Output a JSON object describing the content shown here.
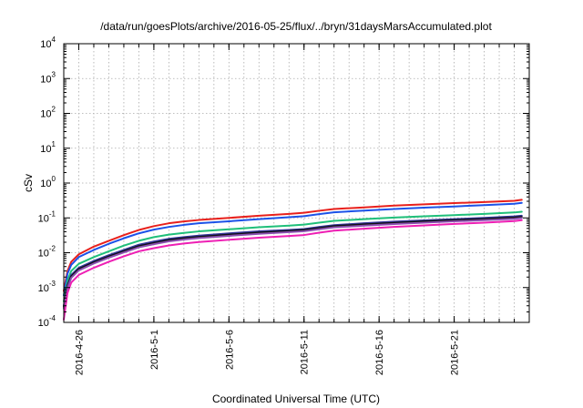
{
  "chart_data": {
    "type": "line",
    "title": "/data/run/goesPlots/archive/2016-05-25/flux/../bryn/31daysMarsAccumulated.plot",
    "xlabel": "Coordinated Universal Time (UTC)",
    "ylabel": "cSv",
    "y_scale": "log",
    "ylim": [
      0.0001,
      10000
    ],
    "xlim": [
      "2016-04-25",
      "2016-05-26"
    ],
    "grid": true,
    "legend": "none",
    "y_ticks": [
      {
        "value": 0.0001,
        "base": "10",
        "exp": "-4"
      },
      {
        "value": 0.001,
        "base": "10",
        "exp": "-3"
      },
      {
        "value": 0.01,
        "base": "10",
        "exp": "-2"
      },
      {
        "value": 0.1,
        "base": "10",
        "exp": "-1"
      },
      {
        "value": 1,
        "base": "10",
        "exp": "0"
      },
      {
        "value": 10,
        "base": "10",
        "exp": "1"
      },
      {
        "value": 100,
        "base": "10",
        "exp": "2"
      },
      {
        "value": 1000,
        "base": "10",
        "exp": "3"
      },
      {
        "value": 10000,
        "base": "10",
        "exp": "4"
      }
    ],
    "x_ticks": [
      {
        "value": "2016-04-26",
        "label": "2016-4-26"
      },
      {
        "value": "2016-05-01",
        "label": "2016-5-1"
      },
      {
        "value": "2016-05-06",
        "label": "2016-5-6"
      },
      {
        "value": "2016-05-11",
        "label": "2016-5-11"
      },
      {
        "value": "2016-05-16",
        "label": "2016-5-16"
      },
      {
        "value": "2016-05-21",
        "label": "2016-5-21"
      }
    ],
    "x_minor_grid": [
      "2016-04-26",
      "2016-04-27",
      "2016-04-28",
      "2016-04-29",
      "2016-04-30",
      "2016-05-01",
      "2016-05-02",
      "2016-05-03",
      "2016-05-04",
      "2016-05-05",
      "2016-05-06",
      "2016-05-07",
      "2016-05-08",
      "2016-05-09",
      "2016-05-10",
      "2016-05-11",
      "2016-05-12",
      "2016-05-13",
      "2016-05-14",
      "2016-05-15",
      "2016-05-16",
      "2016-05-17",
      "2016-05-18",
      "2016-05-19",
      "2016-05-20",
      "2016-05-21",
      "2016-05-22",
      "2016-05-23",
      "2016-05-24",
      "2016-05-25"
    ],
    "series": [
      {
        "color": "#e8201c",
        "points": [
          [
            "2016-04-25T00:00",
            0.0008
          ],
          [
            "2016-04-25T06:00",
            0.003
          ],
          [
            "2016-04-25T12:00",
            0.0055
          ],
          [
            "2016-04-26T00:00",
            0.009
          ],
          [
            "2016-04-27T00:00",
            0.015
          ],
          [
            "2016-04-28T00:00",
            0.022
          ],
          [
            "2016-04-29T00:00",
            0.032
          ],
          [
            "2016-04-30T00:00",
            0.045
          ],
          [
            "2016-05-01T00:00",
            0.058
          ],
          [
            "2016-05-02T00:00",
            0.07
          ],
          [
            "2016-05-03T00:00",
            0.079
          ],
          [
            "2016-05-04T00:00",
            0.087
          ],
          [
            "2016-05-06T00:00",
            0.1
          ],
          [
            "2016-05-08T00:00",
            0.115
          ],
          [
            "2016-05-10T00:00",
            0.13
          ],
          [
            "2016-05-11T00:00",
            0.14
          ],
          [
            "2016-05-12T00:00",
            0.16
          ],
          [
            "2016-05-13T00:00",
            0.18
          ],
          [
            "2016-05-15T00:00",
            0.2
          ],
          [
            "2016-05-17T00:00",
            0.225
          ],
          [
            "2016-05-19T00:00",
            0.245
          ],
          [
            "2016-05-21T00:00",
            0.265
          ],
          [
            "2016-05-23T00:00",
            0.285
          ],
          [
            "2016-05-25T00:00",
            0.31
          ],
          [
            "2016-05-25T12:00",
            0.33
          ]
        ]
      },
      {
        "color": "#1c52e8",
        "points": [
          [
            "2016-04-25T00:00",
            0.0006
          ],
          [
            "2016-04-25T06:00",
            0.0025
          ],
          [
            "2016-04-25T12:00",
            0.0045
          ],
          [
            "2016-04-26T00:00",
            0.0075
          ],
          [
            "2016-04-27T00:00",
            0.012
          ],
          [
            "2016-04-28T00:00",
            0.018
          ],
          [
            "2016-04-29T00:00",
            0.026
          ],
          [
            "2016-04-30T00:00",
            0.036
          ],
          [
            "2016-05-01T00:00",
            0.046
          ],
          [
            "2016-05-02T00:00",
            0.055
          ],
          [
            "2016-05-03T00:00",
            0.063
          ],
          [
            "2016-05-04T00:00",
            0.07
          ],
          [
            "2016-05-06T00:00",
            0.08
          ],
          [
            "2016-05-08T00:00",
            0.092
          ],
          [
            "2016-05-10T00:00",
            0.105
          ],
          [
            "2016-05-11T00:00",
            0.112
          ],
          [
            "2016-05-12T00:00",
            0.128
          ],
          [
            "2016-05-13T00:00",
            0.145
          ],
          [
            "2016-05-15T00:00",
            0.162
          ],
          [
            "2016-05-17T00:00",
            0.18
          ],
          [
            "2016-05-19T00:00",
            0.197
          ],
          [
            "2016-05-21T00:00",
            0.213
          ],
          [
            "2016-05-23T00:00",
            0.232
          ],
          [
            "2016-05-25T00:00",
            0.255
          ],
          [
            "2016-05-25T12:00",
            0.27
          ]
        ]
      },
      {
        "color": "#1fbf7a",
        "points": [
          [
            "2016-04-25T00:00",
            0.0004
          ],
          [
            "2016-04-25T06:00",
            0.0016
          ],
          [
            "2016-04-25T12:00",
            0.003
          ],
          [
            "2016-04-26T00:00",
            0.0048
          ],
          [
            "2016-04-27T00:00",
            0.0075
          ],
          [
            "2016-04-28T00:00",
            0.011
          ],
          [
            "2016-04-29T00:00",
            0.016
          ],
          [
            "2016-04-30T00:00",
            0.022
          ],
          [
            "2016-05-01T00:00",
            0.028
          ],
          [
            "2016-05-02T00:00",
            0.033
          ],
          [
            "2016-05-03T00:00",
            0.037
          ],
          [
            "2016-05-04T00:00",
            0.041
          ],
          [
            "2016-05-06T00:00",
            0.047
          ],
          [
            "2016-05-08T00:00",
            0.054
          ],
          [
            "2016-05-10T00:00",
            0.06
          ],
          [
            "2016-05-11T00:00",
            0.064
          ],
          [
            "2016-05-12T00:00",
            0.073
          ],
          [
            "2016-05-13T00:00",
            0.082
          ],
          [
            "2016-05-15T00:00",
            0.092
          ],
          [
            "2016-05-17T00:00",
            0.102
          ],
          [
            "2016-05-19T00:00",
            0.111
          ],
          [
            "2016-05-21T00:00",
            0.12
          ],
          [
            "2016-05-23T00:00",
            0.13
          ],
          [
            "2016-05-25T00:00",
            0.143
          ],
          [
            "2016-05-25T12:00",
            0.15
          ]
        ]
      },
      {
        "color": "#333399",
        "points": [
          [
            "2016-04-25T00:00",
            0.0003
          ],
          [
            "2016-04-25T06:00",
            0.0012
          ],
          [
            "2016-04-25T12:00",
            0.0023
          ],
          [
            "2016-04-26T00:00",
            0.0037
          ],
          [
            "2016-04-27T00:00",
            0.0058
          ],
          [
            "2016-04-28T00:00",
            0.0085
          ],
          [
            "2016-04-29T00:00",
            0.012
          ],
          [
            "2016-04-30T00:00",
            0.017
          ],
          [
            "2016-05-01T00:00",
            0.021
          ],
          [
            "2016-05-02T00:00",
            0.025
          ],
          [
            "2016-05-03T00:00",
            0.028
          ],
          [
            "2016-05-04T00:00",
            0.031
          ],
          [
            "2016-05-06T00:00",
            0.036
          ],
          [
            "2016-05-08T00:00",
            0.041
          ],
          [
            "2016-05-10T00:00",
            0.045
          ],
          [
            "2016-05-11T00:00",
            0.048
          ],
          [
            "2016-05-12T00:00",
            0.055
          ],
          [
            "2016-05-13T00:00",
            0.062
          ],
          [
            "2016-05-15T00:00",
            0.07
          ],
          [
            "2016-05-17T00:00",
            0.078
          ],
          [
            "2016-05-19T00:00",
            0.085
          ],
          [
            "2016-05-21T00:00",
            0.092
          ],
          [
            "2016-05-23T00:00",
            0.1
          ],
          [
            "2016-05-25T00:00",
            0.11
          ],
          [
            "2016-05-25T12:00",
            0.115
          ]
        ]
      },
      {
        "color": "#111111",
        "points": [
          [
            "2016-04-25T00:00",
            0.00028
          ],
          [
            "2016-04-25T06:00",
            0.0011
          ],
          [
            "2016-04-25T12:00",
            0.0021
          ],
          [
            "2016-04-26T00:00",
            0.0034
          ],
          [
            "2016-04-27T00:00",
            0.0053
          ],
          [
            "2016-04-28T00:00",
            0.0078
          ],
          [
            "2016-04-29T00:00",
            0.011
          ],
          [
            "2016-04-30T00:00",
            0.0155
          ],
          [
            "2016-05-01T00:00",
            0.019
          ],
          [
            "2016-05-02T00:00",
            0.023
          ],
          [
            "2016-05-03T00:00",
            0.026
          ],
          [
            "2016-05-04T00:00",
            0.0285
          ],
          [
            "2016-05-06T00:00",
            0.033
          ],
          [
            "2016-05-08T00:00",
            0.038
          ],
          [
            "2016-05-10T00:00",
            0.042
          ],
          [
            "2016-05-11T00:00",
            0.045
          ],
          [
            "2016-05-12T00:00",
            0.051
          ],
          [
            "2016-05-13T00:00",
            0.058
          ],
          [
            "2016-05-15T00:00",
            0.065
          ],
          [
            "2016-05-17T00:00",
            0.072
          ],
          [
            "2016-05-19T00:00",
            0.079
          ],
          [
            "2016-05-21T00:00",
            0.086
          ],
          [
            "2016-05-23T00:00",
            0.093
          ],
          [
            "2016-05-25T00:00",
            0.102
          ],
          [
            "2016-05-25T12:00",
            0.107
          ]
        ]
      },
      {
        "color": "#8a4fb0",
        "points": [
          [
            "2016-04-25T00:00",
            0.00025
          ],
          [
            "2016-04-25T06:00",
            0.001
          ],
          [
            "2016-04-25T12:00",
            0.0019
          ],
          [
            "2016-04-26T00:00",
            0.0031
          ],
          [
            "2016-04-27T00:00",
            0.0049
          ],
          [
            "2016-04-28T00:00",
            0.0072
          ],
          [
            "2016-04-29T00:00",
            0.0102
          ],
          [
            "2016-04-30T00:00",
            0.0143
          ],
          [
            "2016-05-01T00:00",
            0.0176
          ],
          [
            "2016-05-02T00:00",
            0.0212
          ],
          [
            "2016-05-03T00:00",
            0.024
          ],
          [
            "2016-05-04T00:00",
            0.0264
          ],
          [
            "2016-05-06T00:00",
            0.0305
          ],
          [
            "2016-05-08T00:00",
            0.035
          ],
          [
            "2016-05-10T00:00",
            0.039
          ],
          [
            "2016-05-11T00:00",
            0.0415
          ],
          [
            "2016-05-12T00:00",
            0.047
          ],
          [
            "2016-05-13T00:00",
            0.0535
          ],
          [
            "2016-05-15T00:00",
            0.06
          ],
          [
            "2016-05-17T00:00",
            0.0665
          ],
          [
            "2016-05-19T00:00",
            0.073
          ],
          [
            "2016-05-21T00:00",
            0.0795
          ],
          [
            "2016-05-23T00:00",
            0.086
          ],
          [
            "2016-05-25T00:00",
            0.094
          ],
          [
            "2016-05-25T12:00",
            0.099
          ]
        ]
      },
      {
        "color": "#ee1fb4",
        "points": [
          [
            "2016-04-25T00:00",
            0.00012
          ],
          [
            "2016-04-25T06:00",
            0.0007
          ],
          [
            "2016-04-25T12:00",
            0.0014
          ],
          [
            "2016-04-26T00:00",
            0.0023
          ],
          [
            "2016-04-27T00:00",
            0.0037
          ],
          [
            "2016-04-28T00:00",
            0.0055
          ],
          [
            "2016-04-29T00:00",
            0.0079
          ],
          [
            "2016-04-30T00:00",
            0.011
          ],
          [
            "2016-05-01T00:00",
            0.0135
          ],
          [
            "2016-05-02T00:00",
            0.0162
          ],
          [
            "2016-05-03T00:00",
            0.0184
          ],
          [
            "2016-05-04T00:00",
            0.0203
          ],
          [
            "2016-05-06T00:00",
            0.0235
          ],
          [
            "2016-05-08T00:00",
            0.027
          ],
          [
            "2016-05-10T00:00",
            0.0302
          ],
          [
            "2016-05-11T00:00",
            0.0322
          ],
          [
            "2016-05-12T00:00",
            0.0375
          ],
          [
            "2016-05-13T00:00",
            0.043
          ],
          [
            "2016-05-15T00:00",
            0.049
          ],
          [
            "2016-05-17T00:00",
            0.055
          ],
          [
            "2016-05-19T00:00",
            0.061
          ],
          [
            "2016-05-21T00:00",
            0.067
          ],
          [
            "2016-05-23T00:00",
            0.073
          ],
          [
            "2016-05-25T00:00",
            0.081
          ],
          [
            "2016-05-25T12:00",
            0.086
          ]
        ]
      }
    ]
  }
}
